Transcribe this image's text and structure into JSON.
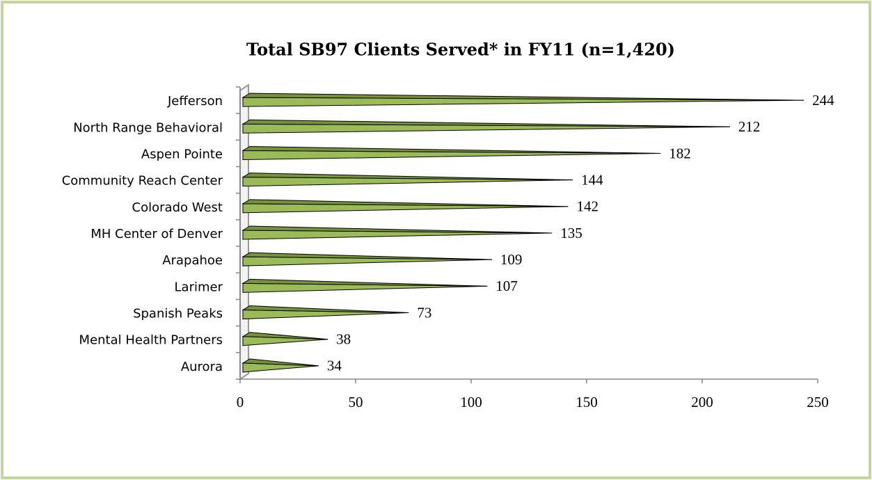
{
  "chart_data": {
    "type": "bar",
    "orientation": "horizontal",
    "title": "Total SB97 Clients Served* in FY11 (n=1,420)",
    "categories": [
      "Jefferson",
      "North Range Behavioral",
      "Aspen Pointe",
      "Community Reach Center",
      "Colorado West",
      "MH Center of Denver",
      "Arapahoe",
      "Larimer",
      "Spanish Peaks",
      "Mental Health Partners",
      "Aurora"
    ],
    "values": [
      244,
      212,
      182,
      144,
      142,
      135,
      109,
      107,
      73,
      38,
      34
    ],
    "color": "#9bbb59",
    "xlim": [
      0,
      250
    ],
    "xticks": [
      0,
      50,
      100,
      150,
      200,
      250
    ]
  }
}
